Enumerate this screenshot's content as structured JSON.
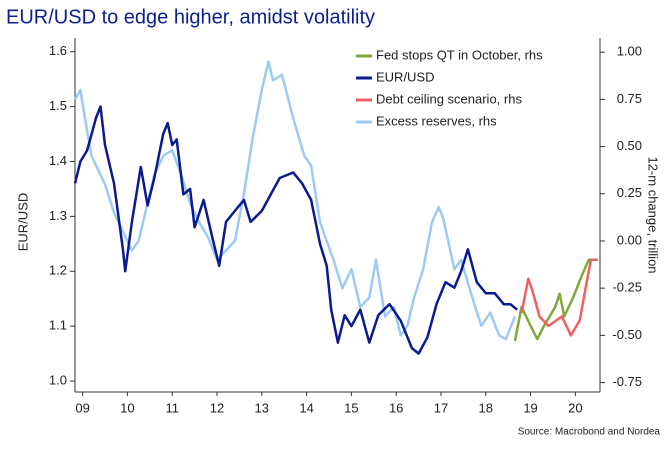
{
  "chart_data": {
    "type": "line",
    "title": "EUR/USD to edge higher, amidst volatility",
    "y_label": "EUR/USD",
    "y2_label": "12-m change, trillion",
    "source": "Source: Macrobond and Nordea",
    "xlim": [
      2009.33,
      2021.05
    ],
    "xticks": [
      {
        "value": 2009.5,
        "label": "09"
      },
      {
        "value": 2010.5,
        "label": "10"
      },
      {
        "value": 2011.5,
        "label": "11"
      },
      {
        "value": 2012.5,
        "label": "12"
      },
      {
        "value": 2013.5,
        "label": "13"
      },
      {
        "value": 2014.5,
        "label": "14"
      },
      {
        "value": 2015.5,
        "label": "15"
      },
      {
        "value": 2016.5,
        "label": "16"
      },
      {
        "value": 2017.5,
        "label": "17"
      },
      {
        "value": 2018.5,
        "label": "18"
      },
      {
        "value": 2019.5,
        "label": "19"
      },
      {
        "value": 2020.5,
        "label": "20"
      }
    ],
    "ylim": [
      0.98,
      1.625
    ],
    "yticks": [
      {
        "value": 1,
        "label": "1.0"
      },
      1.1,
      1.2,
      1.3,
      1.4,
      1.5,
      1.6
    ],
    "y2lim": [
      -0.8,
      1.075
    ],
    "y2ticks": [
      {
        "value": -0.75,
        "label": "-0.75"
      },
      {
        "value": -0.5,
        "label": "-0.50"
      },
      {
        "value": -0.25,
        "label": "-0.25"
      },
      {
        "value": 0,
        "label": "0.00"
      },
      {
        "value": 0.25,
        "label": "0.25"
      },
      {
        "value": 0.5,
        "label": "0.50"
      },
      {
        "value": 0.75,
        "label": "0.75"
      },
      {
        "value": 1,
        "label": "1.00"
      }
    ],
    "series": [
      {
        "name": "Fed stops QT in October, rhs",
        "color": "#7ea83a",
        "axis": "y2",
        "x": [
          2019.15,
          2019.3,
          2019.5,
          2019.65,
          2019.8,
          2020.05,
          2020.15,
          2020.25,
          2020.45,
          2020.65,
          2020.8,
          2021.0
        ],
        "values": [
          -0.53,
          -0.35,
          -0.45,
          -0.52,
          -0.45,
          -0.35,
          -0.28,
          -0.4,
          -0.3,
          -0.18,
          -0.1,
          -0.1
        ]
      },
      {
        "name": "EUR/USD",
        "color": "#0a1a8f",
        "x": [
          2009.33,
          2009.45,
          2009.6,
          2009.8,
          2009.9,
          2010.0,
          2010.2,
          2010.4,
          2010.45,
          2010.6,
          2010.8,
          2010.95,
          2011.1,
          2011.3,
          2011.4,
          2011.5,
          2011.6,
          2011.75,
          2011.9,
          2012.0,
          2012.2,
          2012.4,
          2012.55,
          2012.7,
          2012.9,
          2013.1,
          2013.25,
          2013.5,
          2013.7,
          2013.9,
          2014.2,
          2014.4,
          2014.6,
          2014.8,
          2014.95,
          2015.05,
          2015.2,
          2015.35,
          2015.5,
          2015.7,
          2015.9,
          2016.1,
          2016.35,
          2016.6,
          2016.85,
          2017.0,
          2017.2,
          2017.4,
          2017.6,
          2017.8,
          2017.95,
          2018.1,
          2018.3,
          2018.5,
          2018.7,
          2018.9,
          2019.05,
          2019.2
        ],
        "values": [
          1.36,
          1.4,
          1.42,
          1.48,
          1.5,
          1.43,
          1.36,
          1.24,
          1.2,
          1.29,
          1.39,
          1.32,
          1.37,
          1.45,
          1.47,
          1.43,
          1.44,
          1.34,
          1.35,
          1.28,
          1.33,
          1.26,
          1.21,
          1.29,
          1.31,
          1.33,
          1.29,
          1.31,
          1.34,
          1.37,
          1.38,
          1.36,
          1.33,
          1.25,
          1.21,
          1.13,
          1.07,
          1.12,
          1.1,
          1.13,
          1.07,
          1.12,
          1.14,
          1.11,
          1.06,
          1.05,
          1.08,
          1.14,
          1.18,
          1.17,
          1.2,
          1.24,
          1.18,
          1.16,
          1.16,
          1.14,
          1.14,
          1.13
        ]
      },
      {
        "name": "Debt ceiling scenario, rhs",
        "color": "#f06060",
        "axis": "y2",
        "x": [
          2019.3,
          2019.45,
          2019.55,
          2019.7,
          2019.9,
          2020.2,
          2020.4,
          2020.6,
          2020.75,
          2020.85,
          2021.0
        ],
        "values": [
          -0.38,
          -0.2,
          -0.27,
          -0.4,
          -0.45,
          -0.4,
          -0.5,
          -0.42,
          -0.22,
          -0.1,
          -0.1
        ]
      },
      {
        "name": "Excess reserves, rhs",
        "color": "#9dcaf3",
        "axis": "y2",
        "x": [
          2009.33,
          2009.45,
          2009.55,
          2009.7,
          2009.9,
          2010.0,
          2010.2,
          2010.4,
          2010.6,
          2010.75,
          2010.95,
          2011.1,
          2011.3,
          2011.5,
          2011.7,
          2011.9,
          2012.1,
          2012.3,
          2012.5,
          2012.7,
          2012.9,
          2013.1,
          2013.3,
          2013.5,
          2013.65,
          2013.75,
          2013.95,
          2014.2,
          2014.45,
          2014.6,
          2014.8,
          2014.95,
          2015.1,
          2015.3,
          2015.5,
          2015.7,
          2015.9,
          2016.05,
          2016.25,
          2016.45,
          2016.6,
          2016.75,
          2016.9,
          2017.1,
          2017.3,
          2017.45,
          2017.55,
          2017.8,
          2017.95,
          2018.2,
          2018.4,
          2018.6,
          2018.8,
          2018.95,
          2019.15
        ],
        "values": [
          0.75,
          0.8,
          0.65,
          0.45,
          0.35,
          0.3,
          0.15,
          0.05,
          -0.05,
          0.0,
          0.2,
          0.35,
          0.45,
          0.48,
          0.35,
          0.2,
          0.1,
          0.02,
          -0.1,
          -0.05,
          0.0,
          0.25,
          0.55,
          0.8,
          0.95,
          0.85,
          0.88,
          0.65,
          0.45,
          0.4,
          0.1,
          0.0,
          -0.1,
          -0.25,
          -0.15,
          -0.35,
          -0.3,
          -0.1,
          -0.4,
          -0.35,
          -0.5,
          -0.45,
          -0.3,
          -0.15,
          0.1,
          0.18,
          0.12,
          -0.15,
          -0.1,
          -0.3,
          -0.45,
          -0.38,
          -0.5,
          -0.52,
          -0.4
        ]
      }
    ]
  }
}
